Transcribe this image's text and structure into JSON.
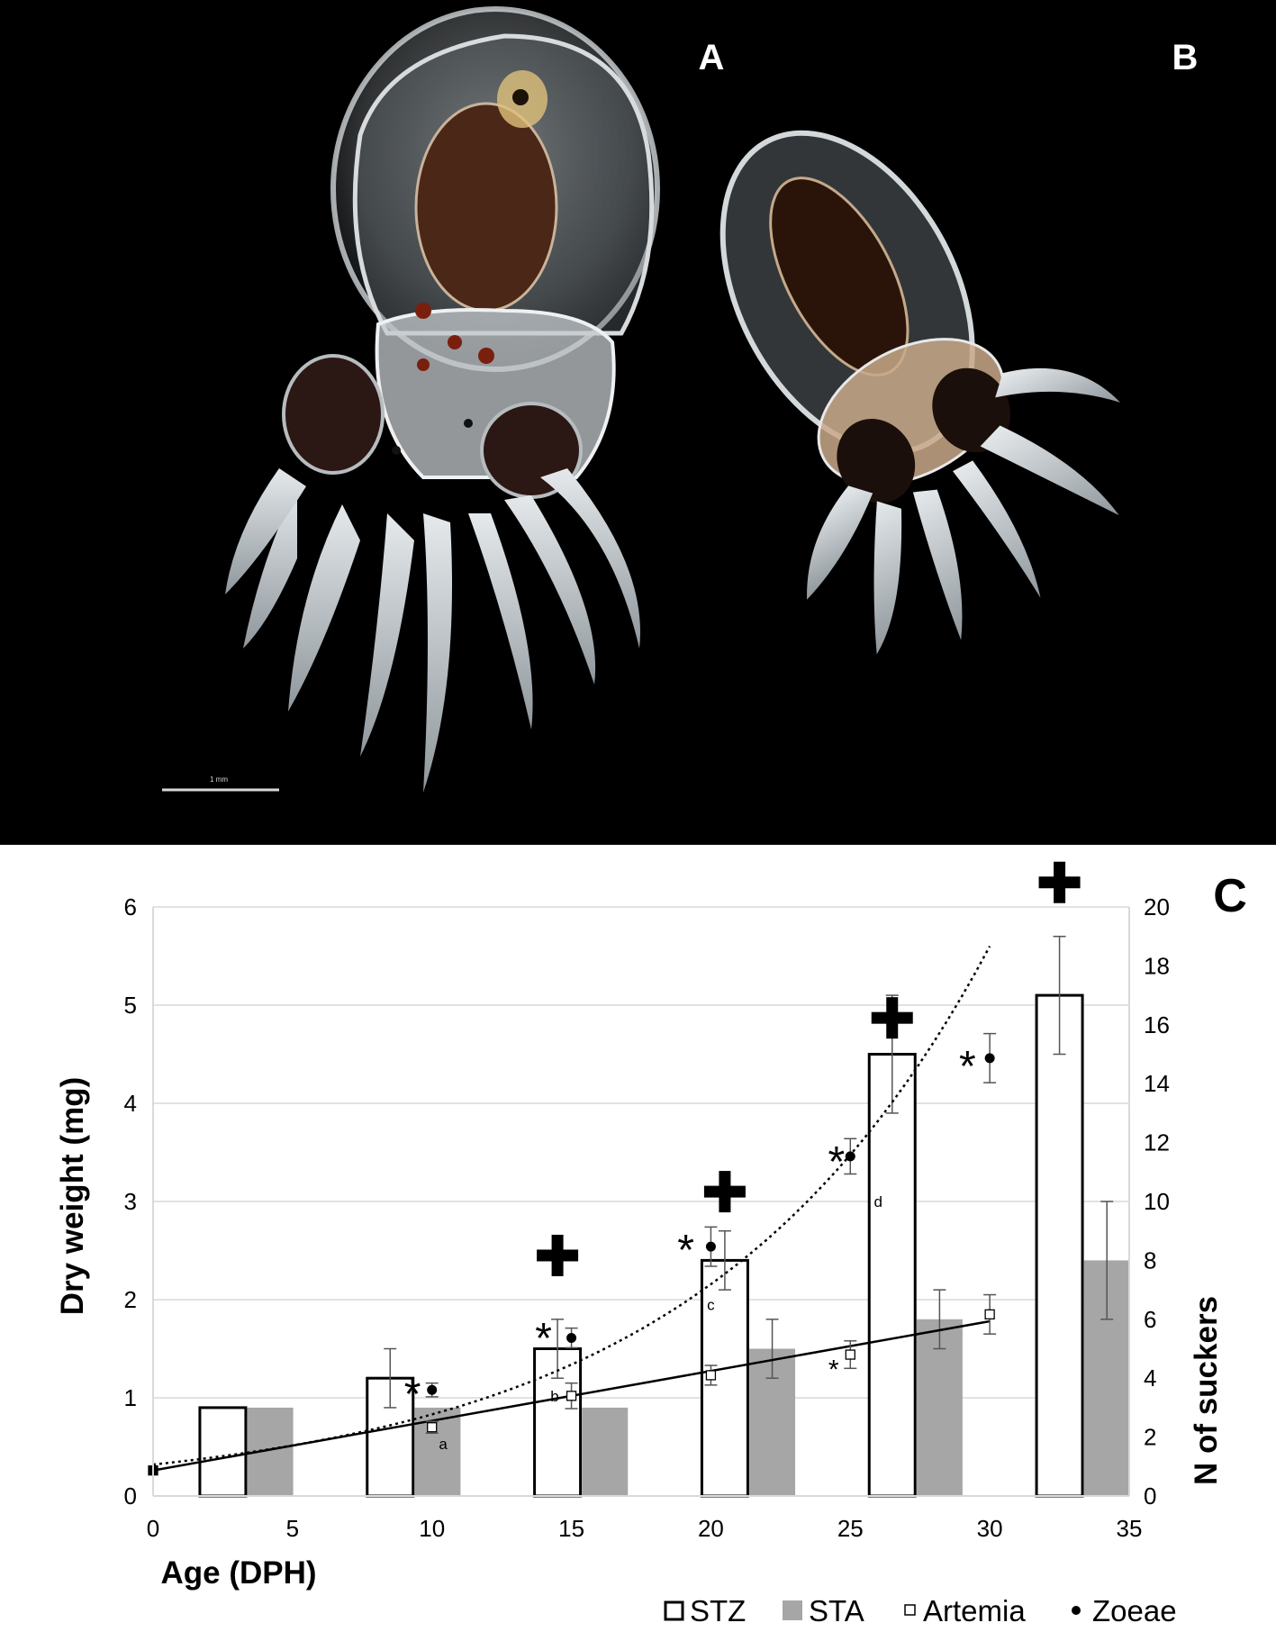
{
  "photo": {
    "label_a": "A",
    "label_b": "B",
    "scale_bar_label": "1 mm"
  },
  "chart_data": {
    "type": "bar",
    "panel_label": "C",
    "xlabel": "Age (DPH)",
    "ylabel_left": "Dry weight  (mg)",
    "ylabel_right": "N of suckers",
    "x_range": [
      0,
      35
    ],
    "y_left_range": [
      0,
      6
    ],
    "y_right_range": [
      0,
      20
    ],
    "x_ticks": [
      0,
      5,
      10,
      15,
      20,
      25,
      30,
      35
    ],
    "y_left_ticks": [
      0,
      1,
      2,
      3,
      4,
      5,
      6
    ],
    "y_right_ticks": [
      0,
      2,
      4,
      6,
      8,
      10,
      12,
      14,
      16,
      18,
      20
    ],
    "grid": "horizontal",
    "legend_position": "bottom-right",
    "series": [
      {
        "name": "STZ",
        "kind": "bar",
        "axis": "right",
        "fill": "#ffffff",
        "stroke": "#000000",
        "x": [
          2.5,
          8.5,
          14.5,
          20.5,
          26.5,
          32.5
        ],
        "values": [
          3,
          4,
          5,
          8,
          15,
          17
        ],
        "error": [
          0,
          1,
          1,
          1,
          2,
          2
        ]
      },
      {
        "name": "STA",
        "kind": "bar",
        "axis": "right",
        "fill": "#a6a6a6",
        "x": [
          4.2,
          10.2,
          16.2,
          22.2,
          28.2,
          34.2
        ],
        "values": [
          3,
          3,
          3,
          5,
          6,
          8
        ],
        "error": [
          0,
          0,
          0,
          1,
          1,
          2
        ]
      },
      {
        "name": "Artemia",
        "kind": "scatter",
        "axis": "left",
        "marker": "open-square",
        "x": [
          0,
          10,
          15,
          20,
          25,
          30
        ],
        "values": [
          0.26,
          0.7,
          1.02,
          1.23,
          1.44,
          1.85
        ],
        "error": [
          0,
          0.06,
          0.13,
          0.1,
          0.14,
          0.2
        ]
      },
      {
        "name": "Zoeae",
        "kind": "scatter",
        "axis": "left",
        "marker": "filled-circle",
        "x": [
          10,
          15,
          20,
          25,
          30
        ],
        "values": [
          1.08,
          1.61,
          2.54,
          3.46,
          4.46
        ],
        "error": [
          0.07,
          0.1,
          0.2,
          0.18,
          0.25
        ]
      }
    ],
    "trendlines": [
      {
        "series": "Artemia",
        "type": "linear",
        "style": "solid",
        "x": [
          0,
          30
        ],
        "y": [
          0.26,
          1.78
        ]
      },
      {
        "series": "Zoeae",
        "type": "exponential",
        "style": "dotted",
        "x": [
          0,
          30
        ],
        "y": [
          0.32,
          5.6
        ]
      }
    ],
    "annotations": {
      "plus_markers": [
        {
          "x": 14.5,
          "y": 2.45
        },
        {
          "x": 20.5,
          "y": 3.1
        },
        {
          "x": 26.5,
          "y": 4.87
        },
        {
          "x": 32.5,
          "y": 6.25
        }
      ],
      "asterisks": [
        {
          "text": "*",
          "x": 9.3,
          "y": 1.13,
          "size": "large"
        },
        {
          "text": "*",
          "x": 14.0,
          "y": 1.7,
          "size": "large"
        },
        {
          "text": "*",
          "x": 19.1,
          "y": 2.6,
          "size": "large"
        },
        {
          "text": "*",
          "x": 24.5,
          "y": 3.5,
          "size": "large"
        },
        {
          "text": "*",
          "x": 29.2,
          "y": 4.47,
          "size": "large"
        },
        {
          "text": "*",
          "x": 24.4,
          "y": 1.35,
          "size": "small"
        }
      ],
      "letters": [
        {
          "text": "a",
          "x": 10.4,
          "y": 0.53
        },
        {
          "text": "b",
          "x": 14.4,
          "y": 1.02
        },
        {
          "text": "c",
          "x": 20.0,
          "y": 1.95
        },
        {
          "text": "d",
          "x": 26.0,
          "y": 3.0
        }
      ]
    }
  }
}
